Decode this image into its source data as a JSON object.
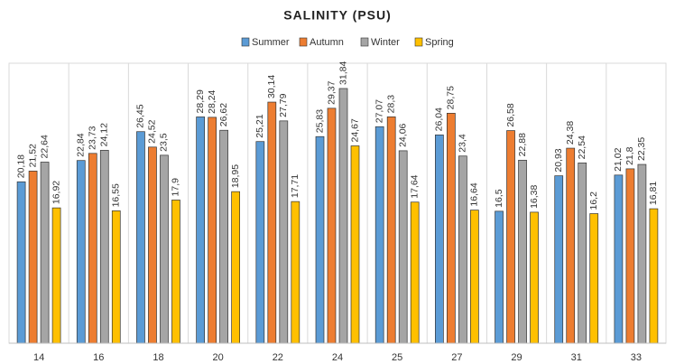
{
  "chart_data": {
    "type": "bar",
    "title": "SALINITY (PSU)",
    "categories": [
      "14",
      "16",
      "18",
      "20",
      "22",
      "24",
      "25",
      "27",
      "29",
      "31",
      "33"
    ],
    "ylim": [
      0,
      35
    ],
    "legend": "top",
    "series": [
      {
        "name": "Summer",
        "color": "#5b9bd5",
        "values": [
          20.18,
          22.84,
          26.45,
          28.29,
          25.21,
          25.83,
          27.07,
          26.04,
          16.5,
          20.93,
          21.02
        ],
        "value_labels": [
          "20,18",
          "22,84",
          "26,45",
          "28,29",
          "25,21",
          "25,83",
          "27,07",
          "26,04",
          "16,5",
          "20,93",
          "21,02"
        ]
      },
      {
        "name": "Autumn",
        "color": "#ed7d31",
        "values": [
          21.52,
          23.73,
          24.52,
          28.24,
          30.14,
          29.37,
          28.3,
          28.75,
          26.58,
          24.38,
          21.8
        ],
        "value_labels": [
          "21,52",
          "23,73",
          "24,52",
          "28,24",
          "30,14",
          "29,37",
          "28,3",
          "28,75",
          "26,58",
          "24,38",
          "21,8"
        ]
      },
      {
        "name": "Winter",
        "color": "#a5a5a5",
        "values": [
          22.64,
          24.12,
          23.5,
          26.62,
          27.79,
          31.84,
          24.06,
          23.4,
          22.88,
          22.54,
          22.35
        ],
        "value_labels": [
          "22,64",
          "24,12",
          "23,5",
          "26,62",
          "27,79",
          "31,84",
          "24,06",
          "23,4",
          "22,88",
          "22,54",
          "22,35"
        ]
      },
      {
        "name": "Spring",
        "color": "#ffc000",
        "values": [
          16.92,
          16.55,
          17.9,
          18.95,
          17.71,
          24.67,
          17.64,
          16.64,
          16.38,
          16.2,
          16.81
        ],
        "value_labels": [
          "16,92",
          "16,55",
          "17,9",
          "18,95",
          "17,71",
          "24,67",
          "17,64",
          "16,64",
          "16,38",
          "16,2",
          "16,81"
        ]
      }
    ]
  }
}
